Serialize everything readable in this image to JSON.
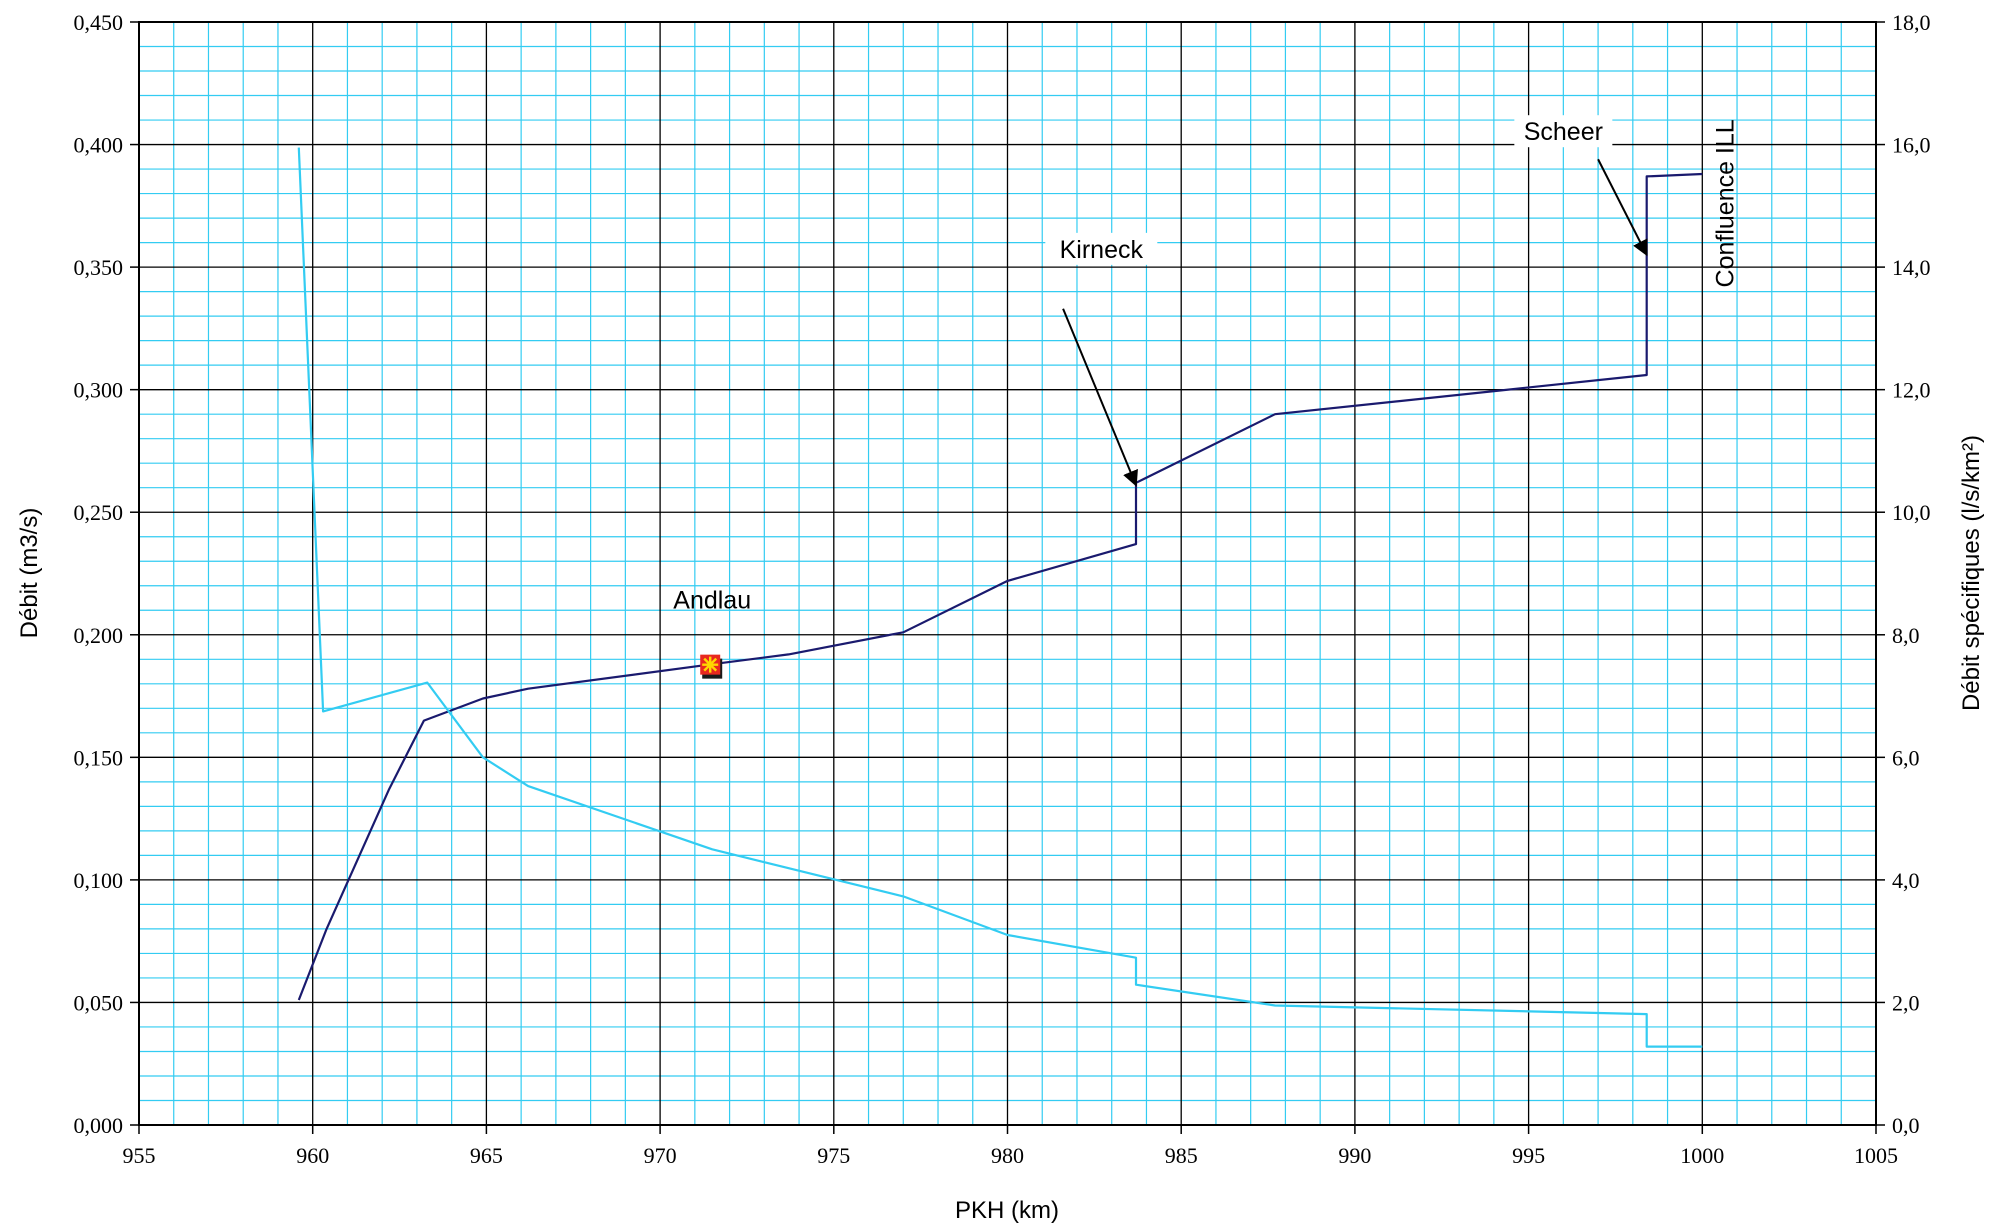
{
  "chart_data": {
    "type": "line",
    "xlabel": "PKH (km)",
    "ylabel_left": "Débit (m3/s)",
    "ylabel_right": "Débit spécifiques (l/s/km²)",
    "xlim": [
      955,
      1005
    ],
    "ylim_left": [
      0,
      0.45
    ],
    "ylim_right": [
      0,
      18
    ],
    "grid": true,
    "x_ticks": [
      "955",
      "960",
      "965",
      "970",
      "975",
      "980",
      "985",
      "990",
      "995",
      "1000",
      "1005"
    ],
    "y_left_ticks": [
      "0,000",
      "0,050",
      "0,100",
      "0,150",
      "0,200",
      "0,250",
      "0,300",
      "0,350",
      "0,400",
      "0,450"
    ],
    "y_right_ticks": [
      "0,0",
      "2,0",
      "4,0",
      "6,0",
      "8,0",
      "10,0",
      "12,0",
      "14,0",
      "16,0",
      "18,0"
    ],
    "series": [
      {
        "axis": "left",
        "color": "#1a1a6e",
        "points": [
          [
            959.6,
            0.051
          ],
          [
            960.4,
            0.08
          ],
          [
            962.2,
            0.137
          ],
          [
            963.2,
            0.165
          ],
          [
            964.9,
            0.174
          ],
          [
            966.2,
            0.178
          ],
          [
            971.5,
            0.188
          ],
          [
            973.7,
            0.192
          ],
          [
            977.0,
            0.201
          ],
          [
            980.0,
            0.222
          ],
          [
            983.7,
            0.237
          ],
          [
            983.7,
            0.262
          ],
          [
            987.7,
            0.29
          ],
          [
            998.4,
            0.306
          ],
          [
            998.4,
            0.387
          ],
          [
            1000.0,
            0.388
          ]
        ]
      },
      {
        "axis": "right",
        "color": "#33ccf2",
        "points": [
          [
            959.6,
            15.95
          ],
          [
            960.3,
            6.75
          ],
          [
            963.3,
            7.22
          ],
          [
            964.9,
            6.0
          ],
          [
            966.2,
            5.53
          ],
          [
            971.5,
            4.5
          ],
          [
            977.0,
            3.73
          ],
          [
            980.0,
            3.1
          ],
          [
            983.7,
            2.73
          ],
          [
            983.7,
            2.29
          ],
          [
            987.7,
            1.95
          ],
          [
            998.4,
            1.81
          ],
          [
            998.4,
            1.28
          ],
          [
            1000.0,
            1.28
          ]
        ]
      }
    ],
    "marker": {
      "label": "Andlau",
      "x": 971.5,
      "y": 0.187,
      "color": "#e8281f",
      "star_color": "#ffd700"
    },
    "annotations": [
      {
        "text": "Andlau",
        "x": 971.5,
        "y": 0.212
      },
      {
        "text": "Kirneck",
        "x": 982.7,
        "y": 0.355,
        "arrow_from": [
          981.6,
          0.333
        ],
        "arrow_to": [
          983.7,
          0.261
        ]
      },
      {
        "text": "Scheer",
        "x": 996.0,
        "y": 0.403,
        "arrow_from": [
          997.0,
          0.394
        ],
        "arrow_to": [
          998.4,
          0.355
        ]
      },
      {
        "text": "Confluence ILL",
        "x": 1000.9,
        "y": 0.376,
        "rotated": true
      }
    ]
  }
}
